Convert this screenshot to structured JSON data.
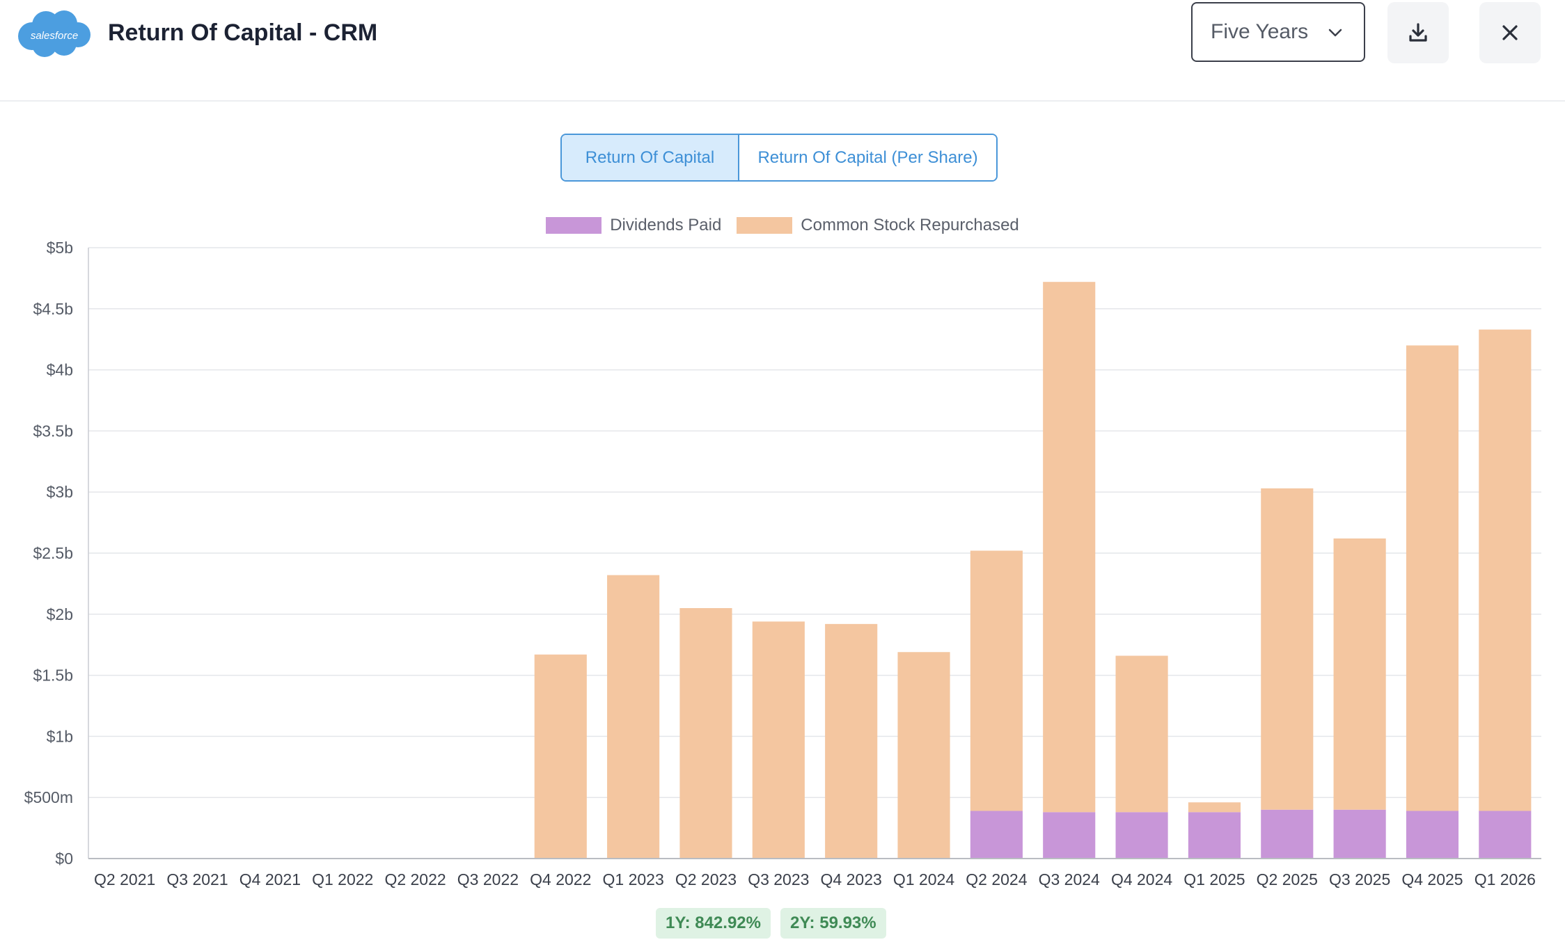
{
  "header": {
    "logo_text": "salesforce",
    "title": "Return Of Capital - CRM",
    "period_select": {
      "value": "Five Years"
    },
    "download_icon": "download-icon",
    "close_icon": "close-icon"
  },
  "tabs": [
    {
      "label": "Return Of Capital",
      "active": true
    },
    {
      "label": "Return Of Capital (Per Share)",
      "active": false
    }
  ],
  "colors": {
    "dividends": "#c896d8",
    "buybacks": "#f4c6a0",
    "accent": "#4a97d9",
    "badge_bg": "#dff2e4",
    "badge_text": "#3f8a55"
  },
  "chart_data": {
    "type": "bar",
    "stacked": true,
    "legend": [
      "Dividends Paid",
      "Common Stock Repurchased"
    ],
    "legend_position": "top-center",
    "grid": true,
    "categories": [
      "Q2 2021",
      "Q3 2021",
      "Q4 2021",
      "Q1 2022",
      "Q2 2022",
      "Q3 2022",
      "Q4 2022",
      "Q1 2023",
      "Q2 2023",
      "Q3 2023",
      "Q4 2023",
      "Q1 2024",
      "Q2 2024",
      "Q3 2024",
      "Q4 2024",
      "Q1 2025",
      "Q2 2025",
      "Q3 2025",
      "Q4 2025",
      "Q1 2026"
    ],
    "series": [
      {
        "name": "Dividends Paid",
        "values": [
          0,
          0,
          0,
          0,
          0,
          0,
          0,
          0,
          0,
          0,
          0,
          0,
          0.39,
          0.38,
          0.38,
          0.38,
          0.4,
          0.4,
          0.39,
          0.39
        ]
      },
      {
        "name": "Common Stock Repurchased",
        "values": [
          0,
          0,
          0,
          0,
          0,
          0,
          1.67,
          2.32,
          2.05,
          1.94,
          1.92,
          1.69,
          2.13,
          4.34,
          1.28,
          0.08,
          2.63,
          2.22,
          3.81,
          3.94
        ]
      }
    ],
    "ylim": [
      0,
      5
    ],
    "yticks": [
      0,
      0.5,
      1,
      1.5,
      2,
      2.5,
      3,
      3.5,
      4,
      4.5,
      5
    ],
    "ytick_labels": [
      "$0",
      "$500m",
      "$1b",
      "$1.5b",
      "$2b",
      "$2.5b",
      "$3b",
      "$3.5b",
      "$4b",
      "$4.5b",
      "$5b"
    ],
    "xlabel": "",
    "ylabel": ""
  },
  "badges": [
    {
      "label": "1Y: 842.92%"
    },
    {
      "label": "2Y: 59.93%"
    }
  ]
}
